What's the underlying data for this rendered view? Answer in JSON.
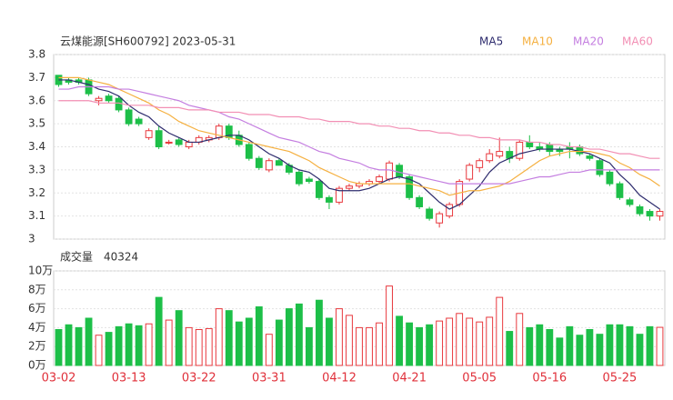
{
  "chart_data": [
    {
      "type": "candlestick",
      "title": "云煤能源[SH600792] 2023-05-31",
      "categories": [
        "03-02",
        null,
        null,
        null,
        null,
        null,
        null,
        "03-13",
        null,
        null,
        null,
        null,
        null,
        null,
        "03-22",
        null,
        null,
        null,
        null,
        null,
        null,
        "03-31",
        null,
        null,
        null,
        null,
        null,
        null,
        "04-12",
        null,
        null,
        null,
        null,
        null,
        null,
        "04-21",
        null,
        null,
        null,
        null,
        null,
        null,
        "05-05",
        null,
        null,
        null,
        null,
        null,
        null,
        "05-16",
        null,
        null,
        null,
        null,
        null,
        null,
        "05-25",
        null,
        null,
        null,
        null
      ],
      "open": [
        3.71,
        3.69,
        3.69,
        3.69,
        3.6,
        3.62,
        3.61,
        3.56,
        3.52,
        3.44,
        3.47,
        3.42,
        3.43,
        3.4,
        3.42,
        3.43,
        3.44,
        3.49,
        3.45,
        3.41,
        3.35,
        3.3,
        3.34,
        3.32,
        3.29,
        3.26,
        3.25,
        3.18,
        3.16,
        3.22,
        3.23,
        3.24,
        3.25,
        3.26,
        3.32,
        3.27,
        3.18,
        3.13,
        3.07,
        3.1,
        3.15,
        3.26,
        3.31,
        3.34,
        3.36,
        3.38,
        3.35,
        3.42,
        3.4,
        3.41,
        3.39,
        3.4,
        3.4,
        3.36,
        3.34,
        3.29,
        3.24,
        3.17,
        3.14,
        3.12,
        3.1
      ],
      "high": [
        3.71,
        3.7,
        3.7,
        3.7,
        3.62,
        3.63,
        3.62,
        3.57,
        3.53,
        3.48,
        3.49,
        3.43,
        3.44,
        3.43,
        3.45,
        3.45,
        3.5,
        3.5,
        3.47,
        3.42,
        3.36,
        3.35,
        3.35,
        3.33,
        3.3,
        3.27,
        3.26,
        3.19,
        3.23,
        3.24,
        3.25,
        3.26,
        3.28,
        3.34,
        3.33,
        3.28,
        3.19,
        3.14,
        3.12,
        3.16,
        3.26,
        3.33,
        3.35,
        3.39,
        3.44,
        3.4,
        3.43,
        3.45,
        3.42,
        3.42,
        3.4,
        3.42,
        3.41,
        3.37,
        3.35,
        3.3,
        3.25,
        3.18,
        3.15,
        3.13,
        3.13
      ],
      "low": [
        3.66,
        3.67,
        3.67,
        3.62,
        3.58,
        3.59,
        3.55,
        3.49,
        3.49,
        3.43,
        3.39,
        3.41,
        3.4,
        3.39,
        3.41,
        3.42,
        3.43,
        3.43,
        3.4,
        3.34,
        3.3,
        3.29,
        3.32,
        3.28,
        3.23,
        3.24,
        3.17,
        3.13,
        3.15,
        3.21,
        3.22,
        3.23,
        3.24,
        3.25,
        3.26,
        3.17,
        3.13,
        3.08,
        3.05,
        3.09,
        3.14,
        3.25,
        3.29,
        3.33,
        3.35,
        3.33,
        3.34,
        3.39,
        3.38,
        3.36,
        3.36,
        3.35,
        3.36,
        3.34,
        3.27,
        3.23,
        3.17,
        3.14,
        3.1,
        3.08,
        3.08
      ],
      "close": [
        3.67,
        3.68,
        3.68,
        3.63,
        3.61,
        3.6,
        3.56,
        3.5,
        3.5,
        3.47,
        3.4,
        3.42,
        3.41,
        3.42,
        3.44,
        3.44,
        3.49,
        3.44,
        3.41,
        3.35,
        3.31,
        3.34,
        3.32,
        3.29,
        3.24,
        3.25,
        3.18,
        3.16,
        3.22,
        3.23,
        3.24,
        3.25,
        3.27,
        3.33,
        3.27,
        3.18,
        3.14,
        3.09,
        3.11,
        3.15,
        3.25,
        3.32,
        3.34,
        3.37,
        3.38,
        3.35,
        3.42,
        3.4,
        3.39,
        3.38,
        3.38,
        3.39,
        3.37,
        3.35,
        3.28,
        3.24,
        3.18,
        3.15,
        3.11,
        3.1,
        3.12
      ],
      "up_color": "#e8383d",
      "down_color": "#1dbf48",
      "series": [
        {
          "name": "MA5",
          "color": "#2e2c6e",
          "values": [
            3.69,
            3.69,
            3.68,
            3.67,
            3.65,
            3.64,
            3.62,
            3.58,
            3.55,
            3.53,
            3.49,
            3.46,
            3.44,
            3.42,
            3.42,
            3.43,
            3.44,
            3.45,
            3.45,
            3.43,
            3.4,
            3.37,
            3.35,
            3.32,
            3.3,
            3.29,
            3.26,
            3.22,
            3.21,
            3.21,
            3.21,
            3.22,
            3.24,
            3.26,
            3.27,
            3.26,
            3.24,
            3.2,
            3.16,
            3.13,
            3.15,
            3.19,
            3.23,
            3.29,
            3.33,
            3.35,
            3.37,
            3.38,
            3.39,
            3.39,
            3.39,
            3.39,
            3.38,
            3.37,
            3.35,
            3.33,
            3.28,
            3.24,
            3.19,
            3.16,
            3.13
          ]
        },
        {
          "name": "MA10",
          "color": "#f5b040",
          "values": [
            3.7,
            3.7,
            3.7,
            3.69,
            3.68,
            3.67,
            3.65,
            3.63,
            3.61,
            3.59,
            3.56,
            3.54,
            3.51,
            3.49,
            3.47,
            3.46,
            3.45,
            3.44,
            3.43,
            3.42,
            3.41,
            3.4,
            3.39,
            3.38,
            3.36,
            3.34,
            3.31,
            3.29,
            3.27,
            3.25,
            3.24,
            3.24,
            3.24,
            3.24,
            3.24,
            3.24,
            3.23,
            3.22,
            3.21,
            3.19,
            3.2,
            3.21,
            3.21,
            3.22,
            3.23,
            3.25,
            3.28,
            3.31,
            3.34,
            3.36,
            3.37,
            3.38,
            3.38,
            3.38,
            3.37,
            3.36,
            3.33,
            3.31,
            3.28,
            3.26,
            3.23
          ]
        },
        {
          "name": "MA20",
          "color": "#c47ee0",
          "values": [
            3.65,
            3.65,
            3.66,
            3.66,
            3.66,
            3.66,
            3.65,
            3.65,
            3.64,
            3.63,
            3.62,
            3.61,
            3.6,
            3.58,
            3.57,
            3.56,
            3.55,
            3.53,
            3.52,
            3.5,
            3.48,
            3.46,
            3.44,
            3.43,
            3.42,
            3.4,
            3.38,
            3.37,
            3.35,
            3.34,
            3.33,
            3.31,
            3.3,
            3.3,
            3.29,
            3.28,
            3.27,
            3.26,
            3.25,
            3.24,
            3.24,
            3.24,
            3.24,
            3.24,
            3.24,
            3.24,
            3.25,
            3.26,
            3.27,
            3.27,
            3.28,
            3.29,
            3.29,
            3.3,
            3.3,
            3.3,
            3.3,
            3.3,
            3.3,
            3.3,
            3.3
          ]
        },
        {
          "name": "MA60",
          "color": "#f28fb4",
          "values": [
            3.6,
            3.6,
            3.6,
            3.6,
            3.59,
            3.59,
            3.59,
            3.58,
            3.58,
            3.58,
            3.57,
            3.57,
            3.57,
            3.56,
            3.56,
            3.56,
            3.55,
            3.55,
            3.55,
            3.54,
            3.54,
            3.54,
            3.53,
            3.53,
            3.53,
            3.52,
            3.52,
            3.51,
            3.51,
            3.51,
            3.5,
            3.5,
            3.49,
            3.49,
            3.48,
            3.48,
            3.47,
            3.47,
            3.46,
            3.46,
            3.45,
            3.45,
            3.44,
            3.44,
            3.43,
            3.43,
            3.43,
            3.42,
            3.42,
            3.41,
            3.41,
            3.4,
            3.4,
            3.39,
            3.39,
            3.38,
            3.37,
            3.37,
            3.36,
            3.35,
            3.35
          ]
        }
      ],
      "ylim": [
        3,
        3.8
      ],
      "yticks": [
        3,
        3.1,
        3.2,
        3.3,
        3.4,
        3.5,
        3.6,
        3.7,
        3.8
      ],
      "grid": true
    },
    {
      "type": "bar",
      "title": "成交量",
      "values": [
        38000,
        43000,
        40000,
        50000,
        32000,
        35000,
        41000,
        44000,
        42000,
        44000,
        72000,
        48000,
        58000,
        40000,
        38000,
        39000,
        60000,
        58000,
        46000,
        50000,
        62000,
        33000,
        48000,
        60000,
        65000,
        40000,
        69000,
        50000,
        60000,
        53000,
        40000,
        40000,
        45000,
        84000,
        52000,
        45000,
        40000,
        43000,
        47000,
        50000,
        55000,
        50000,
        46000,
        51000,
        72000,
        36000,
        55000,
        40000,
        43000,
        38000,
        29000,
        41000,
        32000,
        38000,
        33000,
        43000,
        43000,
        41000,
        33000,
        41000,
        40324
      ],
      "ylim": [
        0,
        100000
      ],
      "yticks": [
        {
          "value": 0,
          "label": "0万"
        },
        {
          "value": 20000,
          "label": "2万"
        },
        {
          "value": 40000,
          "label": "4万"
        },
        {
          "value": 60000,
          "label": "6万"
        },
        {
          "value": 80000,
          "label": "8万"
        },
        {
          "value": 100000,
          "label": "10万"
        }
      ],
      "grid": true
    }
  ]
}
